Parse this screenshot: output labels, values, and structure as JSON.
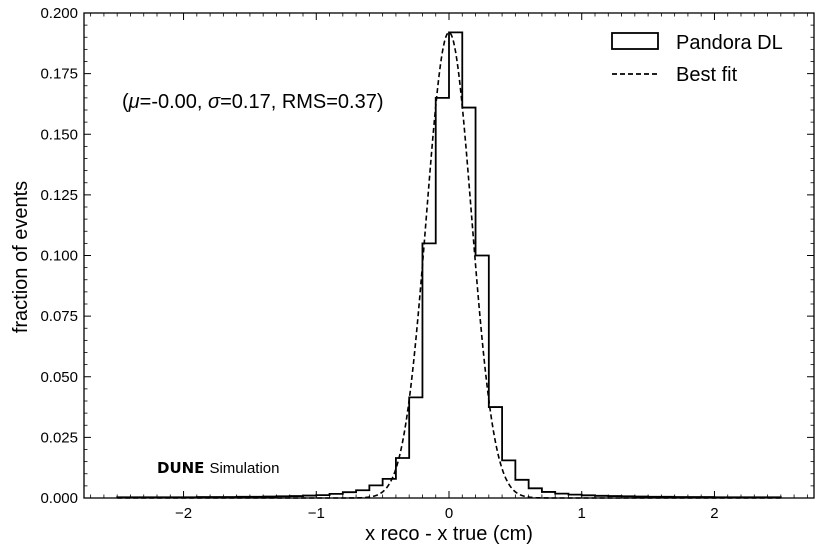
{
  "chart_data": {
    "type": "histogram",
    "xlabel": "x reco - x true (cm)",
    "ylabel": "fraction of events",
    "xlim": [
      -2.75,
      2.75
    ],
    "ylim": [
      0,
      0.2
    ],
    "x_ticks": [
      -2,
      -1,
      0,
      1,
      2
    ],
    "x_tick_labels": [
      "−2",
      "−1",
      "0",
      "1",
      "2"
    ],
    "y_ticks": [
      0,
      0.025,
      0.05,
      0.075,
      0.1,
      0.125,
      0.15,
      0.175,
      0.2
    ],
    "y_tick_labels": [
      "0.000",
      "0.025",
      "0.050",
      "0.075",
      "0.100",
      "0.125",
      "0.150",
      "0.175",
      "0.200"
    ],
    "grid": false,
    "legend_position": "top-right",
    "legend": {
      "hist_label": "Pandora DL",
      "fit_label": "Best fit"
    },
    "annotation": {
      "open": "(",
      "mu_symbol": "μ",
      "mu_value": "=-0.00, ",
      "sigma_symbol": "σ",
      "sigma_value": "=0.17, RMS=0.37)"
    },
    "watermark": {
      "experiment": "DUNE",
      "label": "Simulation"
    },
    "histogram": {
      "name": "Pandora DL",
      "bin_edges": [
        -2.5,
        -2.4,
        -2.3,
        -2.2,
        -2.1,
        -2.0,
        -1.9,
        -1.8,
        -1.7,
        -1.6,
        -1.5,
        -1.4,
        -1.3,
        -1.2,
        -1.1,
        -1.0,
        -0.9,
        -0.8,
        -0.7,
        -0.6,
        -0.5,
        -0.4,
        -0.3,
        -0.2,
        -0.1,
        0.0,
        0.1,
        0.2,
        0.3,
        0.4,
        0.5,
        0.6,
        0.7,
        0.8,
        0.9,
        1.0,
        1.1,
        1.2,
        1.3,
        1.4,
        1.5,
        1.6,
        1.7,
        1.8,
        1.9,
        2.0,
        2.1,
        2.2,
        2.3,
        2.4,
        2.5
      ],
      "values": [
        0.0003,
        0.0003,
        0.0003,
        0.0003,
        0.0003,
        0.0003,
        0.0004,
        0.0004,
        0.0004,
        0.0005,
        0.0005,
        0.0006,
        0.0007,
        0.0008,
        0.001,
        0.0012,
        0.0017,
        0.0024,
        0.0032,
        0.0052,
        0.0079,
        0.0165,
        0.0415,
        0.105,
        0.165,
        0.192,
        0.161,
        0.1,
        0.0375,
        0.0155,
        0.0075,
        0.004,
        0.0025,
        0.0018,
        0.0014,
        0.0011,
        0.0009,
        0.0008,
        0.0007,
        0.0006,
        0.0005,
        0.0005,
        0.0004,
        0.0004,
        0.0004,
        0.0003,
        0.0003,
        0.0003,
        0.0003,
        0.0003
      ]
    },
    "fit": {
      "name": "Best fit",
      "mu": -0.0,
      "sigma": 0.17,
      "amplitude": 0.192,
      "x_range": [
        -2.5,
        2.5
      ]
    }
  }
}
